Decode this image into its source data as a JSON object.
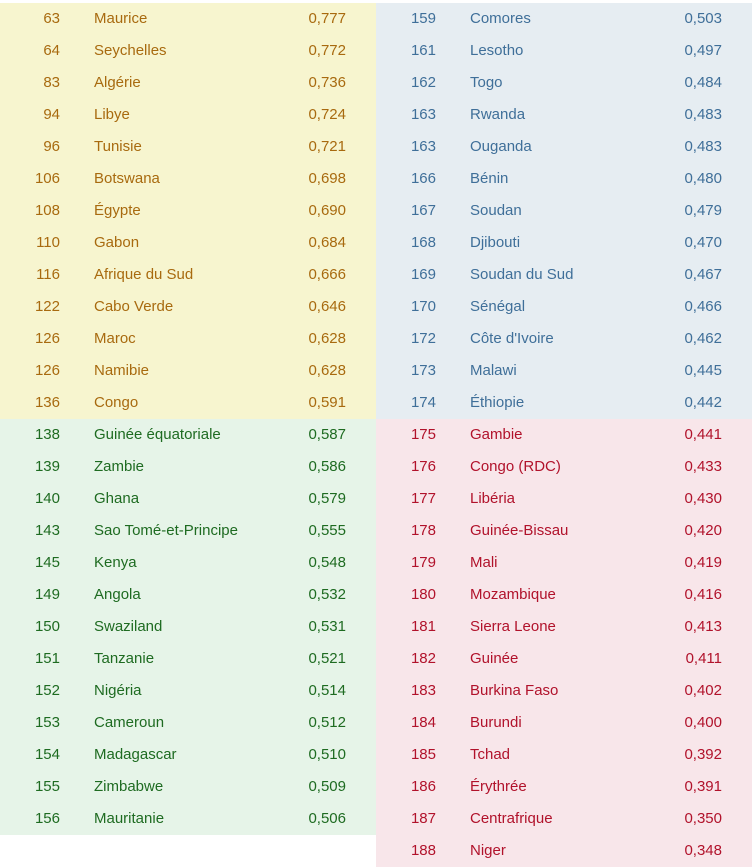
{
  "left_column": [
    {
      "rank": "63",
      "country": "Maurice",
      "value": "0,777",
      "group": "yellow"
    },
    {
      "rank": "64",
      "country": "Seychelles",
      "value": "0,772",
      "group": "yellow"
    },
    {
      "rank": "83",
      "country": "Algérie",
      "value": "0,736",
      "group": "yellow"
    },
    {
      "rank": "94",
      "country": "Libye",
      "value": "0,724",
      "group": "yellow"
    },
    {
      "rank": "96",
      "country": "Tunisie",
      "value": "0,721",
      "group": "yellow"
    },
    {
      "rank": "106",
      "country": "Botswana",
      "value": "0,698",
      "group": "yellow"
    },
    {
      "rank": "108",
      "country": "Égypte",
      "value": "0,690",
      "group": "yellow"
    },
    {
      "rank": "110",
      "country": "Gabon",
      "value": "0,684",
      "group": "yellow"
    },
    {
      "rank": "116",
      "country": "Afrique du Sud",
      "value": "0,666",
      "group": "yellow"
    },
    {
      "rank": "122",
      "country": "Cabo Verde",
      "value": "0,646",
      "group": "yellow"
    },
    {
      "rank": "126",
      "country": "Maroc",
      "value": "0,628",
      "group": "yellow"
    },
    {
      "rank": "126",
      "country": "Namibie",
      "value": "0,628",
      "group": "yellow"
    },
    {
      "rank": "136",
      "country": "Congo",
      "value": "0,591",
      "group": "yellow"
    },
    {
      "rank": "138",
      "country": "Guinée équatoriale",
      "value": "0,587",
      "group": "green"
    },
    {
      "rank": "139",
      "country": "Zambie",
      "value": "0,586",
      "group": "green"
    },
    {
      "rank": "140",
      "country": "Ghana",
      "value": "0,579",
      "group": "green"
    },
    {
      "rank": "143",
      "country": "Sao Tomé-et-Principe",
      "value": "0,555",
      "group": "green"
    },
    {
      "rank": "145",
      "country": "Kenya",
      "value": "0,548",
      "group": "green"
    },
    {
      "rank": "149",
      "country": "Angola",
      "value": "0,532",
      "group": "green"
    },
    {
      "rank": "150",
      "country": "Swaziland",
      "value": "0,531",
      "group": "green"
    },
    {
      "rank": "151",
      "country": "Tanzanie",
      "value": "0,521",
      "group": "green"
    },
    {
      "rank": "152",
      "country": "Nigéria",
      "value": "0,514",
      "group": "green"
    },
    {
      "rank": "153",
      "country": "Cameroun",
      "value": "0,512",
      "group": "green"
    },
    {
      "rank": "154",
      "country": "Madagascar",
      "value": "0,510",
      "group": "green"
    },
    {
      "rank": "155",
      "country": "Zimbabwe",
      "value": "0,509",
      "group": "green"
    },
    {
      "rank": "156",
      "country": "Mauritanie",
      "value": "0,506",
      "group": "green"
    }
  ],
  "right_column": [
    {
      "rank": "159",
      "country": "Comores",
      "value": "0,503",
      "group": "blue"
    },
    {
      "rank": "161",
      "country": "Lesotho",
      "value": "0,497",
      "group": "blue"
    },
    {
      "rank": "162",
      "country": "Togo",
      "value": "0,484",
      "group": "blue"
    },
    {
      "rank": "163",
      "country": "Rwanda",
      "value": "0,483",
      "group": "blue"
    },
    {
      "rank": "163",
      "country": "Ouganda",
      "value": "0,483",
      "group": "blue"
    },
    {
      "rank": "166",
      "country": "Bénin",
      "value": "0,480",
      "group": "blue"
    },
    {
      "rank": "167",
      "country": "Soudan",
      "value": "0,479",
      "group": "blue"
    },
    {
      "rank": "168",
      "country": "Djibouti",
      "value": "0,470",
      "group": "blue"
    },
    {
      "rank": "169",
      "country": "Soudan du Sud",
      "value": "0,467",
      "group": "blue"
    },
    {
      "rank": "170",
      "country": "Sénégal",
      "value": "0,466",
      "group": "blue"
    },
    {
      "rank": "172",
      "country": "Côte d'Ivoire",
      "value": "0,462",
      "group": "blue"
    },
    {
      "rank": "173",
      "country": "Malawi",
      "value": "0,445",
      "group": "blue"
    },
    {
      "rank": "174",
      "country": "Éthiopie",
      "value": "0,442",
      "group": "blue"
    },
    {
      "rank": "175",
      "country": "Gambie",
      "value": "0,441",
      "group": "red"
    },
    {
      "rank": "176",
      "country": "Congo (RDC)",
      "value": "0,433",
      "group": "red"
    },
    {
      "rank": "177",
      "country": "Libéria",
      "value": "0,430",
      "group": "red"
    },
    {
      "rank": "178",
      "country": "Guinée-Bissau",
      "value": "0,420",
      "group": "red"
    },
    {
      "rank": "179",
      "country": "Mali",
      "value": "0,419",
      "group": "red"
    },
    {
      "rank": "180",
      "country": "Mozambique",
      "value": "0,416",
      "group": "red"
    },
    {
      "rank": "181",
      "country": "Sierra Leone",
      "value": "0,413",
      "group": "red"
    },
    {
      "rank": "182",
      "country": "Guinée",
      "value": "0,411",
      "group": "red"
    },
    {
      "rank": "183",
      "country": "Burkina Faso",
      "value": "0,402",
      "group": "red"
    },
    {
      "rank": "184",
      "country": "Burundi",
      "value": "0,400",
      "group": "red"
    },
    {
      "rank": "185",
      "country": "Tchad",
      "value": "0,392",
      "group": "red"
    },
    {
      "rank": "186",
      "country": "Érythrée",
      "value": "0,391",
      "group": "red"
    },
    {
      "rank": "187",
      "country": "Centrafrique",
      "value": "0,350",
      "group": "red"
    },
    {
      "rank": "188",
      "country": "Niger",
      "value": "0,348",
      "group": "red"
    }
  ],
  "colors": {
    "yellow_bg": "#f7f5cf",
    "yellow_text": "#a86a0f",
    "green_bg": "#e6f4e8",
    "green_text": "#1e6b21",
    "blue_bg": "#e6edf2",
    "blue_text": "#3f6f99",
    "red_bg": "#f8e6ea",
    "red_text": "#b1122b"
  }
}
